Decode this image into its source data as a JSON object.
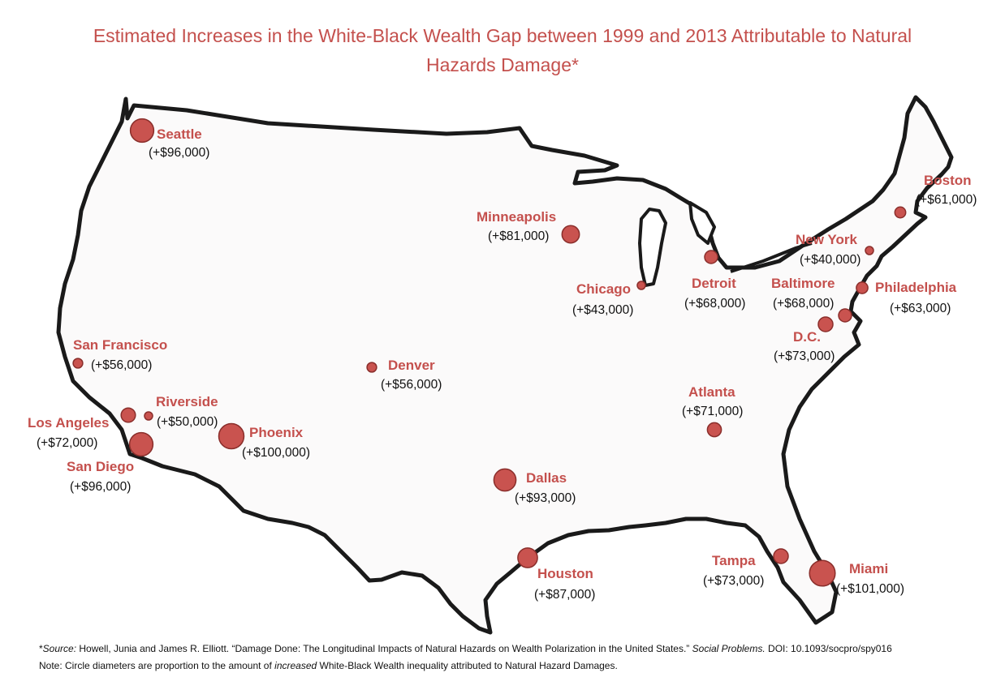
{
  "title": {
    "line1": "Estimated Increases in the White-Black Wealth Gap between 1999 and 2013 Attributable to Natural",
    "line2": "Hazards Damage*"
  },
  "colors": {
    "title": "#c4504d",
    "marker": "#c9534f",
    "map_fill": "#fbfafa",
    "map_outline": "#1a1a1a"
  },
  "cities": [
    {
      "name": "Seattle",
      "value": "(+$96,000)",
      "amount": 96000
    },
    {
      "name": "Boston",
      "value": "(+$61,000)",
      "amount": 61000
    },
    {
      "name": "Minneapolis",
      "value": "(+$81,000)",
      "amount": 81000
    },
    {
      "name": "New York",
      "value": "(+$40,000)",
      "amount": 40000
    },
    {
      "name": "Chicago",
      "value": "(+$43,000)",
      "amount": 43000
    },
    {
      "name": "Detroit",
      "value": "(+$68,000)",
      "amount": 68000
    },
    {
      "name": "Baltimore",
      "value": "(+$68,000)",
      "amount": 68000
    },
    {
      "name": "Philadelphia",
      "value": "(+$63,000)",
      "amount": 63000
    },
    {
      "name": "D.C.",
      "value": "(+$73,000)",
      "amount": 73000
    },
    {
      "name": "San Francisco",
      "value": "(+$56,000)",
      "amount": 56000
    },
    {
      "name": "Denver",
      "value": "(+$56,000)",
      "amount": 56000
    },
    {
      "name": "Atlanta",
      "value": "(+$71,000)",
      "amount": 71000
    },
    {
      "name": "Riverside",
      "value": "(+$50,000)",
      "amount": 50000
    },
    {
      "name": "Los Angeles",
      "value": "(+$72,000)",
      "amount": 72000
    },
    {
      "name": "Phoenix",
      "value": "(+$100,000)",
      "amount": 100000
    },
    {
      "name": "San Diego",
      "value": "(+$96,000)",
      "amount": 96000
    },
    {
      "name": "Dallas",
      "value": "(+$93,000)",
      "amount": 93000
    },
    {
      "name": "Houston",
      "value": "(+$87,000)",
      "amount": 87000
    },
    {
      "name": "Tampa",
      "value": "(+$73,000)",
      "amount": 73000
    },
    {
      "name": "Miami",
      "value": "(+$101,000)",
      "amount": 101000
    }
  ],
  "footer": {
    "source_prefix": "*",
    "source_label": "Source:",
    "source_text": " Howell, Junia and James R. Elliott. “Damage Done: The Longitudinal Impacts of Natural Hazards on Wealth Polarization in the United States.” ",
    "journal": "Social Problems.",
    "doi": " DOI: 10.1093/socpro/spy016",
    "note_prefix": "Note: Circle diameters are proportion to the amount of ",
    "note_emphasis": "increased",
    "note_suffix": " White-Black Wealth inequality attributed to Natural Hazard Damages."
  }
}
